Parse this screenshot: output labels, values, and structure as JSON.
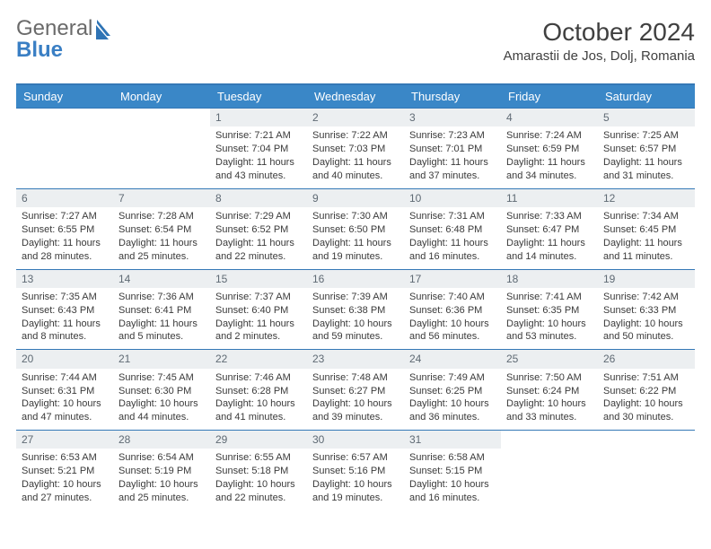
{
  "logo": {
    "textA": "General",
    "textB": "Blue"
  },
  "title": "October 2024",
  "location": "Amarastii de Jos, Dolj, Romania",
  "colors": {
    "header_bg": "#3a87c7",
    "rule": "#3478b6",
    "daynum_bg": "#eceff1",
    "daynum_fg": "#5f6a74"
  },
  "weekdays": [
    "Sunday",
    "Monday",
    "Tuesday",
    "Wednesday",
    "Thursday",
    "Friday",
    "Saturday"
  ],
  "weeks": [
    [
      {
        "n": null
      },
      {
        "n": null
      },
      {
        "n": "1",
        "sr": "Sunrise: 7:21 AM",
        "ss": "Sunset: 7:04 PM",
        "dl": "Daylight: 11 hours and 43 minutes."
      },
      {
        "n": "2",
        "sr": "Sunrise: 7:22 AM",
        "ss": "Sunset: 7:03 PM",
        "dl": "Daylight: 11 hours and 40 minutes."
      },
      {
        "n": "3",
        "sr": "Sunrise: 7:23 AM",
        "ss": "Sunset: 7:01 PM",
        "dl": "Daylight: 11 hours and 37 minutes."
      },
      {
        "n": "4",
        "sr": "Sunrise: 7:24 AM",
        "ss": "Sunset: 6:59 PM",
        "dl": "Daylight: 11 hours and 34 minutes."
      },
      {
        "n": "5",
        "sr": "Sunrise: 7:25 AM",
        "ss": "Sunset: 6:57 PM",
        "dl": "Daylight: 11 hours and 31 minutes."
      }
    ],
    [
      {
        "n": "6",
        "sr": "Sunrise: 7:27 AM",
        "ss": "Sunset: 6:55 PM",
        "dl": "Daylight: 11 hours and 28 minutes."
      },
      {
        "n": "7",
        "sr": "Sunrise: 7:28 AM",
        "ss": "Sunset: 6:54 PM",
        "dl": "Daylight: 11 hours and 25 minutes."
      },
      {
        "n": "8",
        "sr": "Sunrise: 7:29 AM",
        "ss": "Sunset: 6:52 PM",
        "dl": "Daylight: 11 hours and 22 minutes."
      },
      {
        "n": "9",
        "sr": "Sunrise: 7:30 AM",
        "ss": "Sunset: 6:50 PM",
        "dl": "Daylight: 11 hours and 19 minutes."
      },
      {
        "n": "10",
        "sr": "Sunrise: 7:31 AM",
        "ss": "Sunset: 6:48 PM",
        "dl": "Daylight: 11 hours and 16 minutes."
      },
      {
        "n": "11",
        "sr": "Sunrise: 7:33 AM",
        "ss": "Sunset: 6:47 PM",
        "dl": "Daylight: 11 hours and 14 minutes."
      },
      {
        "n": "12",
        "sr": "Sunrise: 7:34 AM",
        "ss": "Sunset: 6:45 PM",
        "dl": "Daylight: 11 hours and 11 minutes."
      }
    ],
    [
      {
        "n": "13",
        "sr": "Sunrise: 7:35 AM",
        "ss": "Sunset: 6:43 PM",
        "dl": "Daylight: 11 hours and 8 minutes."
      },
      {
        "n": "14",
        "sr": "Sunrise: 7:36 AM",
        "ss": "Sunset: 6:41 PM",
        "dl": "Daylight: 11 hours and 5 minutes."
      },
      {
        "n": "15",
        "sr": "Sunrise: 7:37 AM",
        "ss": "Sunset: 6:40 PM",
        "dl": "Daylight: 11 hours and 2 minutes."
      },
      {
        "n": "16",
        "sr": "Sunrise: 7:39 AM",
        "ss": "Sunset: 6:38 PM",
        "dl": "Daylight: 10 hours and 59 minutes."
      },
      {
        "n": "17",
        "sr": "Sunrise: 7:40 AM",
        "ss": "Sunset: 6:36 PM",
        "dl": "Daylight: 10 hours and 56 minutes."
      },
      {
        "n": "18",
        "sr": "Sunrise: 7:41 AM",
        "ss": "Sunset: 6:35 PM",
        "dl": "Daylight: 10 hours and 53 minutes."
      },
      {
        "n": "19",
        "sr": "Sunrise: 7:42 AM",
        "ss": "Sunset: 6:33 PM",
        "dl": "Daylight: 10 hours and 50 minutes."
      }
    ],
    [
      {
        "n": "20",
        "sr": "Sunrise: 7:44 AM",
        "ss": "Sunset: 6:31 PM",
        "dl": "Daylight: 10 hours and 47 minutes."
      },
      {
        "n": "21",
        "sr": "Sunrise: 7:45 AM",
        "ss": "Sunset: 6:30 PM",
        "dl": "Daylight: 10 hours and 44 minutes."
      },
      {
        "n": "22",
        "sr": "Sunrise: 7:46 AM",
        "ss": "Sunset: 6:28 PM",
        "dl": "Daylight: 10 hours and 41 minutes."
      },
      {
        "n": "23",
        "sr": "Sunrise: 7:48 AM",
        "ss": "Sunset: 6:27 PM",
        "dl": "Daylight: 10 hours and 39 minutes."
      },
      {
        "n": "24",
        "sr": "Sunrise: 7:49 AM",
        "ss": "Sunset: 6:25 PM",
        "dl": "Daylight: 10 hours and 36 minutes."
      },
      {
        "n": "25",
        "sr": "Sunrise: 7:50 AM",
        "ss": "Sunset: 6:24 PM",
        "dl": "Daylight: 10 hours and 33 minutes."
      },
      {
        "n": "26",
        "sr": "Sunrise: 7:51 AM",
        "ss": "Sunset: 6:22 PM",
        "dl": "Daylight: 10 hours and 30 minutes."
      }
    ],
    [
      {
        "n": "27",
        "sr": "Sunrise: 6:53 AM",
        "ss": "Sunset: 5:21 PM",
        "dl": "Daylight: 10 hours and 27 minutes."
      },
      {
        "n": "28",
        "sr": "Sunrise: 6:54 AM",
        "ss": "Sunset: 5:19 PM",
        "dl": "Daylight: 10 hours and 25 minutes."
      },
      {
        "n": "29",
        "sr": "Sunrise: 6:55 AM",
        "ss": "Sunset: 5:18 PM",
        "dl": "Daylight: 10 hours and 22 minutes."
      },
      {
        "n": "30",
        "sr": "Sunrise: 6:57 AM",
        "ss": "Sunset: 5:16 PM",
        "dl": "Daylight: 10 hours and 19 minutes."
      },
      {
        "n": "31",
        "sr": "Sunrise: 6:58 AM",
        "ss": "Sunset: 5:15 PM",
        "dl": "Daylight: 10 hours and 16 minutes."
      },
      {
        "n": null
      },
      {
        "n": null
      }
    ]
  ]
}
